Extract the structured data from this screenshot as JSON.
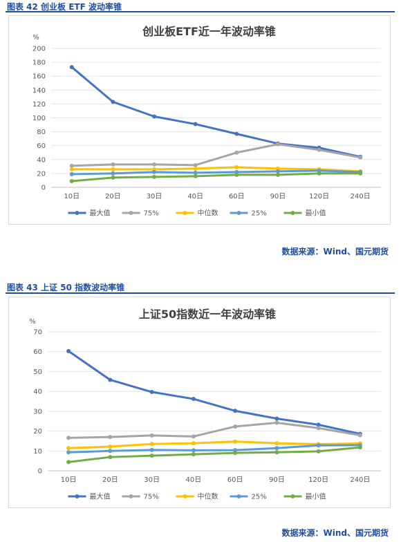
{
  "figures": [
    {
      "caption": "图表 42  创业板 ETF 波动率锥",
      "source": "数据来源：Wind、国元期货"
    },
    {
      "caption": "图表 43  上证 50 指数波动率锥",
      "source": "数据来源：Wind、国元期货"
    }
  ],
  "colors": {
    "max": "#4472c4",
    "p75": "#a5a5a5",
    "median": "#ffc000",
    "p25": "#5b9bd5",
    "min": "#70ad47",
    "caption": "#1f4e9e"
  },
  "chart_data": [
    {
      "type": "line",
      "title": "创业板ETF近一年波动率锥",
      "ylabel": "%",
      "ylim": [
        0,
        200
      ],
      "yticks": [
        0,
        20,
        40,
        60,
        80,
        100,
        120,
        140,
        160,
        180,
        200
      ],
      "categories": [
        "10日",
        "20日",
        "30日",
        "40日",
        "60日",
        "90日",
        "120日",
        "240日"
      ],
      "legend_position": "bottom",
      "series": [
        {
          "name": "最大值",
          "color_key": "max",
          "values": [
            173,
            123,
            102,
            91,
            77,
            63,
            57,
            44
          ]
        },
        {
          "name": "75%",
          "color_key": "p75",
          "values": [
            31,
            33,
            33,
            32,
            50,
            62,
            54,
            43
          ]
        },
        {
          "name": "中位数",
          "color_key": "median",
          "values": [
            26,
            26,
            26,
            27,
            29,
            27,
            26,
            23
          ]
        },
        {
          "name": "25%",
          "color_key": "p25",
          "values": [
            19,
            20,
            22,
            21,
            22,
            23,
            24,
            22
          ]
        },
        {
          "name": "最小值",
          "color_key": "min",
          "values": [
            9,
            14,
            15,
            16,
            18,
            18,
            20,
            20
          ]
        }
      ]
    },
    {
      "type": "line",
      "title": "上证50指数近一年波动率锥",
      "ylabel": "%",
      "ylim": [
        0,
        70
      ],
      "yticks": [
        0,
        10,
        20,
        30,
        40,
        50,
        60,
        70
      ],
      "categories": [
        "10日",
        "20日",
        "30日",
        "40日",
        "60日",
        "90日",
        "120日",
        "240日"
      ],
      "legend_position": "bottom",
      "series": [
        {
          "name": "最大值",
          "color_key": "max",
          "values": [
            60.3,
            45.8,
            39.7,
            36.2,
            30.2,
            26.3,
            23.2,
            18.6
          ]
        },
        {
          "name": "75%",
          "color_key": "p75",
          "values": [
            16.6,
            17.0,
            17.8,
            17.3,
            22.3,
            24.2,
            21.5,
            17.9
          ]
        },
        {
          "name": "中位数",
          "color_key": "median",
          "values": [
            11.4,
            12.2,
            13.5,
            13.9,
            14.7,
            13.9,
            13.4,
            13.8
          ]
        },
        {
          "name": "25%",
          "color_key": "p25",
          "values": [
            9.3,
            10.0,
            10.5,
            10.3,
            10.4,
            11.4,
            12.8,
            12.9
          ]
        },
        {
          "name": "最小值",
          "color_key": "min",
          "values": [
            4.4,
            6.9,
            7.6,
            8.3,
            9.0,
            9.3,
            9.8,
            11.8
          ]
        }
      ]
    }
  ]
}
